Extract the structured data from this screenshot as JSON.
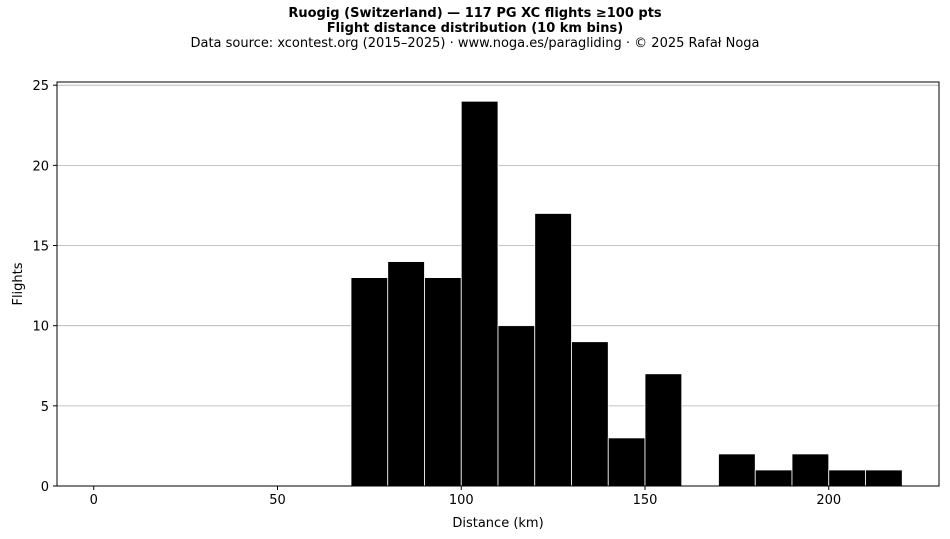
{
  "title_line1": "Ruogig (Switzerland)  —  117 PG XC flights ≥100 pts",
  "title_line2": "Flight distance distribution (10 km bins)",
  "source_line": "Data source: xcontest.org (2015–2025)  ·  www.noga.es/paragliding  ·  © 2025 Rafał Noga",
  "chart_data": {
    "type": "bar",
    "xlabel": "Distance (km)",
    "ylabel": "Flights",
    "xlim": [
      -10,
      230
    ],
    "ylim": [
      0,
      25.2
    ],
    "xticks": [
      0,
      50,
      100,
      150,
      200
    ],
    "yticks": [
      0,
      5,
      10,
      15,
      20,
      25
    ],
    "grid": "y",
    "bin_width": 10,
    "bins": [
      {
        "start": 70,
        "value": 13
      },
      {
        "start": 80,
        "value": 14
      },
      {
        "start": 90,
        "value": 13
      },
      {
        "start": 100,
        "value": 24
      },
      {
        "start": 110,
        "value": 10
      },
      {
        "start": 120,
        "value": 17
      },
      {
        "start": 130,
        "value": 9
      },
      {
        "start": 140,
        "value": 3
      },
      {
        "start": 150,
        "value": 7
      },
      {
        "start": 160,
        "value": 0
      },
      {
        "start": 170,
        "value": 2
      },
      {
        "start": 180,
        "value": 1
      },
      {
        "start": 190,
        "value": 2
      },
      {
        "start": 200,
        "value": 1
      },
      {
        "start": 210,
        "value": 1
      }
    ],
    "colors": {
      "bar": "#000000",
      "bar_edge": "#ffffff",
      "grid": "#b0b0b0",
      "axis": "#000000"
    }
  }
}
